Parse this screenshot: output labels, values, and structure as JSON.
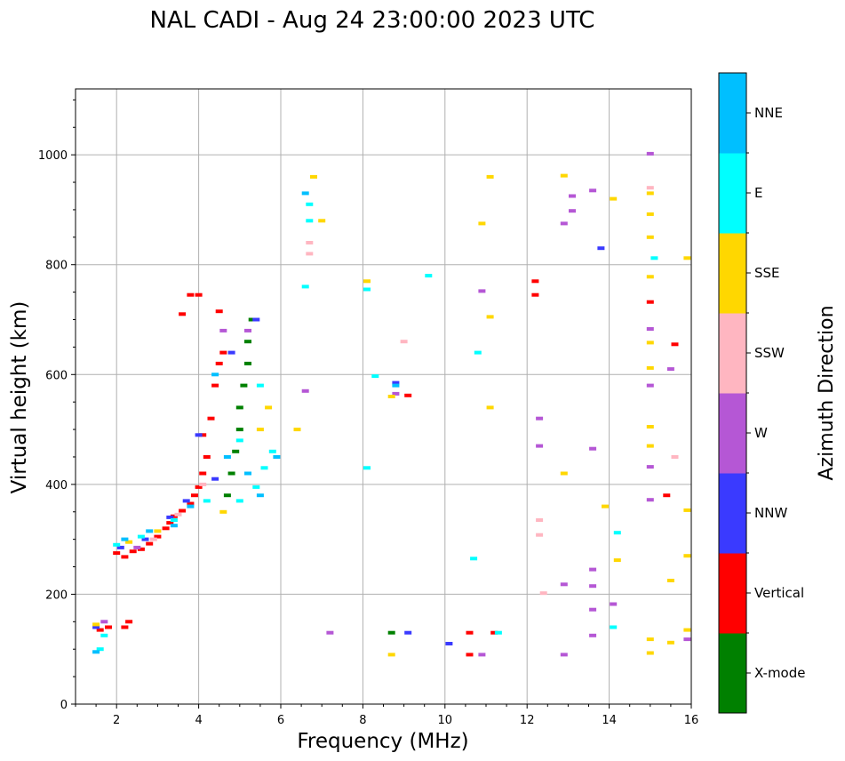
{
  "chart_data": {
    "type": "scatter",
    "title": "NAL CADI - Aug 24 23:00:00 2023 UTC",
    "xlabel": "Frequency (MHz)",
    "ylabel": "Virtual height (km)",
    "xlim": [
      1,
      16
    ],
    "ylim": [
      0,
      1120
    ],
    "xticks": [
      2,
      4,
      6,
      8,
      10,
      12,
      14,
      16
    ],
    "yticks": [
      0,
      200,
      400,
      600,
      800,
      1000
    ],
    "grid": true,
    "colorbar": {
      "label": "Azimuth Direction",
      "categories": [
        {
          "name": "X-mode",
          "color": "#008000"
        },
        {
          "name": "Vertical",
          "color": "#ff0000"
        },
        {
          "name": "NNW",
          "color": "#3a3aff"
        },
        {
          "name": "W",
          "color": "#b557d5"
        },
        {
          "name": "SSW",
          "color": "#ffb6c1"
        },
        {
          "name": "SSE",
          "color": "#ffd700"
        },
        {
          "name": "E",
          "color": "#00ffff"
        },
        {
          "name": "NNE",
          "color": "#00bfff"
        }
      ]
    },
    "series": [
      {
        "name": "Vertical",
        "points": [
          [
            1.6,
            135
          ],
          [
            1.8,
            140
          ],
          [
            2.2,
            140
          ],
          [
            2.3,
            150
          ],
          [
            2.0,
            275
          ],
          [
            2.2,
            268
          ],
          [
            2.4,
            278
          ],
          [
            2.6,
            282
          ],
          [
            2.8,
            292
          ],
          [
            3.0,
            305
          ],
          [
            3.2,
            320
          ],
          [
            3.3,
            330
          ],
          [
            3.4,
            342
          ],
          [
            3.6,
            352
          ],
          [
            3.8,
            365
          ],
          [
            3.9,
            380
          ],
          [
            4.0,
            395
          ],
          [
            4.1,
            420
          ],
          [
            4.2,
            450
          ],
          [
            4.1,
            490
          ],
          [
            4.3,
            520
          ],
          [
            4.4,
            580
          ],
          [
            4.5,
            620
          ],
          [
            4.6,
            640
          ],
          [
            3.6,
            710
          ],
          [
            4.0,
            745
          ],
          [
            3.8,
            745
          ],
          [
            4.5,
            715
          ],
          [
            9.1,
            562
          ],
          [
            10.6,
            130
          ],
          [
            11.2,
            130
          ],
          [
            10.6,
            90
          ],
          [
            12.2,
            745
          ],
          [
            12.2,
            770
          ],
          [
            15.4,
            380
          ],
          [
            15.6,
            655
          ],
          [
            15.0,
            732
          ]
        ]
      },
      {
        "name": "X-mode",
        "points": [
          [
            4.7,
            380
          ],
          [
            4.8,
            420
          ],
          [
            4.9,
            460
          ],
          [
            5.0,
            500
          ],
          [
            5.0,
            540
          ],
          [
            5.1,
            580
          ],
          [
            5.2,
            620
          ],
          [
            5.2,
            660
          ],
          [
            5.3,
            700
          ],
          [
            8.7,
            130
          ]
        ]
      },
      {
        "name": "NNW",
        "points": [
          [
            1.5,
            140
          ],
          [
            2.1,
            285
          ],
          [
            2.7,
            300
          ],
          [
            3.3,
            340
          ],
          [
            3.7,
            370
          ],
          [
            4.4,
            410
          ],
          [
            4.0,
            490
          ],
          [
            4.8,
            640
          ],
          [
            5.4,
            700
          ],
          [
            8.8,
            585
          ],
          [
            9.1,
            130
          ],
          [
            10.1,
            110
          ],
          [
            13.8,
            830
          ]
        ]
      },
      {
        "name": "W",
        "points": [
          [
            1.7,
            150
          ],
          [
            2.5,
            285
          ],
          [
            4.6,
            680
          ],
          [
            5.2,
            680
          ],
          [
            6.6,
            570
          ],
          [
            7.2,
            130
          ],
          [
            8.8,
            565
          ],
          [
            10.9,
            752
          ],
          [
            12.3,
            520
          ],
          [
            12.3,
            470
          ],
          [
            12.9,
            875
          ],
          [
            13.1,
            925
          ],
          [
            13.1,
            898
          ],
          [
            13.6,
            935
          ],
          [
            13.6,
            465
          ],
          [
            13.6,
            245
          ],
          [
            13.6,
            215
          ],
          [
            13.6,
            172
          ],
          [
            13.6,
            125
          ],
          [
            14.1,
            182
          ],
          [
            12.9,
            218
          ],
          [
            12.9,
            90
          ],
          [
            10.9,
            90
          ],
          [
            15.0,
            1002
          ],
          [
            15.0,
            683
          ],
          [
            15.0,
            580
          ],
          [
            15.0,
            432
          ],
          [
            15.0,
            372
          ],
          [
            15.5,
            610
          ],
          [
            15.9,
            118
          ]
        ]
      },
      {
        "name": "SSW",
        "points": [
          [
            2.9,
            300
          ],
          [
            3.5,
            345
          ],
          [
            4.1,
            400
          ],
          [
            6.7,
            820
          ],
          [
            6.7,
            840
          ],
          [
            9.0,
            660
          ],
          [
            12.3,
            335
          ],
          [
            12.3,
            308
          ],
          [
            12.4,
            202
          ],
          [
            15.0,
            940
          ],
          [
            15.6,
            450
          ]
        ]
      },
      {
        "name": "SSE",
        "points": [
          [
            1.5,
            145
          ],
          [
            2.3,
            295
          ],
          [
            3.0,
            315
          ],
          [
            4.6,
            350
          ],
          [
            5.5,
            500
          ],
          [
            5.7,
            540
          ],
          [
            6.4,
            500
          ],
          [
            6.8,
            960
          ],
          [
            7.0,
            880
          ],
          [
            8.1,
            770
          ],
          [
            8.7,
            90
          ],
          [
            8.7,
            560
          ],
          [
            10.9,
            875
          ],
          [
            11.1,
            960
          ],
          [
            11.1,
            540
          ],
          [
            11.1,
            705
          ],
          [
            12.9,
            962
          ],
          [
            12.9,
            420
          ],
          [
            13.9,
            360
          ],
          [
            14.1,
            920
          ],
          [
            14.2,
            262
          ],
          [
            15.0,
            930
          ],
          [
            15.0,
            892
          ],
          [
            15.0,
            850
          ],
          [
            15.0,
            778
          ],
          [
            15.0,
            658
          ],
          [
            15.0,
            612
          ],
          [
            15.0,
            505
          ],
          [
            15.0,
            470
          ],
          [
            15.0,
            118
          ],
          [
            15.0,
            93
          ],
          [
            15.5,
            225
          ],
          [
            15.5,
            112
          ],
          [
            15.9,
            812
          ],
          [
            15.9,
            353
          ],
          [
            15.9,
            270
          ],
          [
            15.9,
            135
          ]
        ]
      },
      {
        "name": "E",
        "points": [
          [
            1.6,
            100
          ],
          [
            1.7,
            125
          ],
          [
            2.0,
            290
          ],
          [
            2.6,
            305
          ],
          [
            3.4,
            335
          ],
          [
            4.2,
            370
          ],
          [
            5.0,
            370
          ],
          [
            5.4,
            395
          ],
          [
            5.6,
            430
          ],
          [
            5.8,
            460
          ],
          [
            5.0,
            480
          ],
          [
            5.5,
            580
          ],
          [
            6.6,
            760
          ],
          [
            6.7,
            910
          ],
          [
            6.7,
            880
          ],
          [
            8.1,
            755
          ],
          [
            8.1,
            430
          ],
          [
            8.3,
            597
          ],
          [
            9.6,
            780
          ],
          [
            10.7,
            265
          ],
          [
            10.8,
            640
          ],
          [
            11.3,
            130
          ],
          [
            14.2,
            312
          ],
          [
            14.1,
            140
          ],
          [
            15.1,
            812
          ]
        ]
      },
      {
        "name": "NNE",
        "points": [
          [
            1.5,
            95
          ],
          [
            2.2,
            300
          ],
          [
            2.8,
            315
          ],
          [
            3.4,
            325
          ],
          [
            3.8,
            360
          ],
          [
            4.7,
            450
          ],
          [
            5.5,
            380
          ],
          [
            5.9,
            450
          ],
          [
            5.2,
            420
          ],
          [
            4.4,
            600
          ],
          [
            6.6,
            930
          ],
          [
            8.8,
            580
          ]
        ]
      }
    ]
  }
}
